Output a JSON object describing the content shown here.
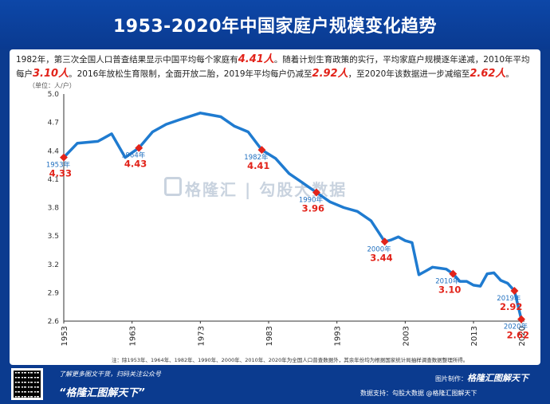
{
  "title": "1953-2020年中国家庭户规模变化趋势",
  "intro": {
    "p1": "1982年，第三次全国人口普查结果显示中国平均每个家庭有",
    "h1": "4.41人",
    "p2": "。随着计划生育政策的实行，平均家庭户规模逐年递减，2010年平均每户",
    "h2": "3.10人",
    "p3": "。2016年放松生育限制，全面开放二胎，2019年平均每户仍减至",
    "h3": "2.92人",
    "p4": "，至2020年该数据进一步减缩至",
    "h4": "2.62人",
    "p5": "。"
  },
  "unit_label": "（单位：人/户）",
  "note": "注：除1953年、1964年、1982年、1990年、2000年、2010年、2020年为全国人口普查数据外，其余年份均为根据国家统计局抽样调查数据整理所得。",
  "watermark": "格隆汇 | 勾股大数据",
  "footer": {
    "line1": "了解更多图文干货，扫码关注公众号",
    "line2": "“格隆汇图解天下”",
    "maker_label": "图片制作：",
    "maker": "格隆汇图解天下",
    "source": "数据支持：勾股大数据  @格隆汇图解天下"
  },
  "colors": {
    "line": "#1f7bd0",
    "marker": "#e2231a",
    "background": "#0b3b8f",
    "axis": "#333333"
  },
  "chart_data": {
    "type": "line",
    "ylabel": "（单位：人/户）",
    "ylim": [
      2.6,
      5.0
    ],
    "yticks": [
      2.6,
      2.9,
      3.2,
      3.5,
      3.8,
      4.1,
      4.4,
      4.7,
      5.0
    ],
    "xlim": [
      1953,
      2020
    ],
    "xticks": [
      1953,
      1963,
      1973,
      1983,
      1993,
      2003,
      2013,
      2020
    ],
    "grid": false,
    "series": [
      {
        "x": [
          1953,
          1955,
          1958,
          1960,
          1962,
          1963,
          1964,
          1966,
          1968,
          1970,
          1973,
          1976,
          1978,
          1980,
          1982,
          1984,
          1986,
          1988,
          1990,
          1992,
          1994,
          1996,
          1998,
          2000,
          2001,
          2002,
          2003,
          2004,
          2005,
          2006,
          2007,
          2008,
          2009,
          2010,
          2011,
          2012,
          2013,
          2014,
          2015,
          2016,
          2017,
          2018,
          2019,
          2020
        ],
        "y": [
          4.33,
          4.48,
          4.5,
          4.58,
          4.33,
          4.38,
          4.43,
          4.6,
          4.68,
          4.73,
          4.8,
          4.76,
          4.66,
          4.6,
          4.41,
          4.32,
          4.16,
          4.06,
          3.96,
          3.86,
          3.8,
          3.76,
          3.66,
          3.44,
          3.46,
          3.49,
          3.45,
          3.43,
          3.09,
          3.13,
          3.17,
          3.16,
          3.15,
          3.1,
          3.02,
          3.02,
          2.98,
          2.97,
          3.1,
          3.11,
          3.03,
          3.0,
          2.92,
          2.62
        ]
      }
    ],
    "annotations": [
      {
        "year": 1953,
        "year_label": "1953年",
        "value": 4.33,
        "value_label": "4.33"
      },
      {
        "year": 1964,
        "year_label": "1964年",
        "value": 4.43,
        "value_label": "4.43"
      },
      {
        "year": 1982,
        "year_label": "1982年",
        "value": 4.41,
        "value_label": "4.41"
      },
      {
        "year": 1990,
        "year_label": "1990年",
        "value": 3.96,
        "value_label": "3.96"
      },
      {
        "year": 2000,
        "year_label": "2000年",
        "value": 3.44,
        "value_label": "3.44"
      },
      {
        "year": 2010,
        "year_label": "2010年",
        "value": 3.1,
        "value_label": "3.10"
      },
      {
        "year": 2019,
        "year_label": "2019年",
        "value": 2.92,
        "value_label": "2.92"
      },
      {
        "year": 2020,
        "year_label": "2020年",
        "value": 2.62,
        "value_label": "2.62"
      }
    ]
  }
}
